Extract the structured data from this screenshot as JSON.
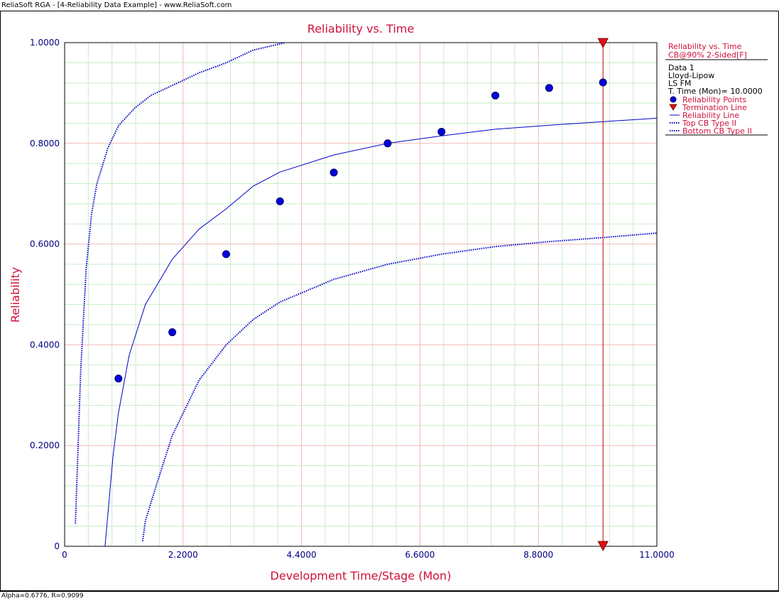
{
  "window": {
    "title": "ReliaSoft RGA - [4-Reliability Data Example] - www.ReliaSoft.com"
  },
  "status": {
    "text": "Alpha=0.6776, R=0.9099"
  },
  "colors": {
    "accent": "#d0103a",
    "axis_text": "#000080",
    "series": "#0000c8",
    "termination": "#c00000",
    "major_grid": "#f2b8b8",
    "minor_grid": "#c8ecc8"
  },
  "chart_data": {
    "type": "scatter",
    "title": "Reliability vs. Time",
    "xlabel": "Development Time/Stage (Mon)",
    "ylabel": "Reliability",
    "xlim": [
      0,
      11
    ],
    "ylim": [
      0,
      1
    ],
    "x_ticks": [
      {
        "value": 0,
        "label": "0"
      },
      {
        "value": 2.2,
        "label": "2.2000"
      },
      {
        "value": 4.4,
        "label": "4.4000"
      },
      {
        "value": 6.6,
        "label": "6.6000"
      },
      {
        "value": 8.8,
        "label": "8.8000"
      },
      {
        "value": 11,
        "label": "11.0000"
      }
    ],
    "y_ticks": [
      {
        "value": 0,
        "label": "0"
      },
      {
        "value": 0.2,
        "label": "0.2000"
      },
      {
        "value": 0.4,
        "label": "0.4000"
      },
      {
        "value": 0.6,
        "label": "0.6000"
      },
      {
        "value": 0.8,
        "label": "0.8000"
      },
      {
        "value": 1,
        "label": "1.0000"
      }
    ],
    "grid": true,
    "reliability_points": [
      {
        "x": 1,
        "y": 0.333
      },
      {
        "x": 2,
        "y": 0.425
      },
      {
        "x": 3,
        "y": 0.58
      },
      {
        "x": 4,
        "y": 0.685
      },
      {
        "x": 5,
        "y": 0.742
      },
      {
        "x": 6,
        "y": 0.8
      },
      {
        "x": 7,
        "y": 0.823
      },
      {
        "x": 8,
        "y": 0.895
      },
      {
        "x": 9,
        "y": 0.91
      },
      {
        "x": 10,
        "y": 0.921
      }
    ],
    "termination_time": 10,
    "reliability_line": [
      {
        "x": 0.75,
        "y": 0.0
      },
      {
        "x": 0.8,
        "y": 0.06
      },
      {
        "x": 0.9,
        "y": 0.18
      },
      {
        "x": 1.0,
        "y": 0.265
      },
      {
        "x": 1.2,
        "y": 0.38
      },
      {
        "x": 1.5,
        "y": 0.48
      },
      {
        "x": 2.0,
        "y": 0.57
      },
      {
        "x": 2.5,
        "y": 0.63
      },
      {
        "x": 3.0,
        "y": 0.67
      },
      {
        "x": 3.5,
        "y": 0.715
      },
      {
        "x": 4.0,
        "y": 0.743
      },
      {
        "x": 5.0,
        "y": 0.777
      },
      {
        "x": 6.0,
        "y": 0.8
      },
      {
        "x": 7.0,
        "y": 0.815
      },
      {
        "x": 8.0,
        "y": 0.828
      },
      {
        "x": 9.0,
        "y": 0.836
      },
      {
        "x": 10.0,
        "y": 0.843
      },
      {
        "x": 11.0,
        "y": 0.85
      }
    ],
    "top_cb": [
      {
        "x": 0.2,
        "y": 0.045
      },
      {
        "x": 0.25,
        "y": 0.2
      },
      {
        "x": 0.3,
        "y": 0.35
      },
      {
        "x": 0.4,
        "y": 0.55
      },
      {
        "x": 0.5,
        "y": 0.66
      },
      {
        "x": 0.6,
        "y": 0.72
      },
      {
        "x": 0.8,
        "y": 0.79
      },
      {
        "x": 1.0,
        "y": 0.835
      },
      {
        "x": 1.3,
        "y": 0.87
      },
      {
        "x": 1.6,
        "y": 0.895
      },
      {
        "x": 2.0,
        "y": 0.915
      },
      {
        "x": 2.5,
        "y": 0.94
      },
      {
        "x": 3.0,
        "y": 0.96
      },
      {
        "x": 3.5,
        "y": 0.985
      },
      {
        "x": 4.1,
        "y": 1.0
      }
    ],
    "bottom_cb": [
      {
        "x": 1.45,
        "y": 0.01
      },
      {
        "x": 1.5,
        "y": 0.05
      },
      {
        "x": 1.7,
        "y": 0.12
      },
      {
        "x": 2.0,
        "y": 0.22
      },
      {
        "x": 2.5,
        "y": 0.33
      },
      {
        "x": 3.0,
        "y": 0.4
      },
      {
        "x": 3.5,
        "y": 0.45
      },
      {
        "x": 4.0,
        "y": 0.485
      },
      {
        "x": 5.0,
        "y": 0.53
      },
      {
        "x": 6.0,
        "y": 0.56
      },
      {
        "x": 7.0,
        "y": 0.58
      },
      {
        "x": 8.0,
        "y": 0.595
      },
      {
        "x": 9.0,
        "y": 0.605
      },
      {
        "x": 10.0,
        "y": 0.613
      },
      {
        "x": 11.0,
        "y": 0.622
      }
    ]
  },
  "legend": {
    "heading1": "Reliability vs. Time",
    "heading2": "CB@90% 2-Sided[F]",
    "info": [
      "Data 1",
      "Lloyd-Lipow",
      "LS FM",
      "T. Time (Mon)= 10.0000"
    ],
    "entries": [
      {
        "label": "Reliability Points",
        "icon": "blue-dot"
      },
      {
        "label": "Termination Line",
        "icon": "red-down-triangle"
      },
      {
        "label": "Reliability Line",
        "icon": "solid-line"
      },
      {
        "label": "Top CB Type II",
        "icon": "dotted-line"
      },
      {
        "label": "Bottom CB Type II",
        "icon": "dotted-line"
      }
    ]
  }
}
